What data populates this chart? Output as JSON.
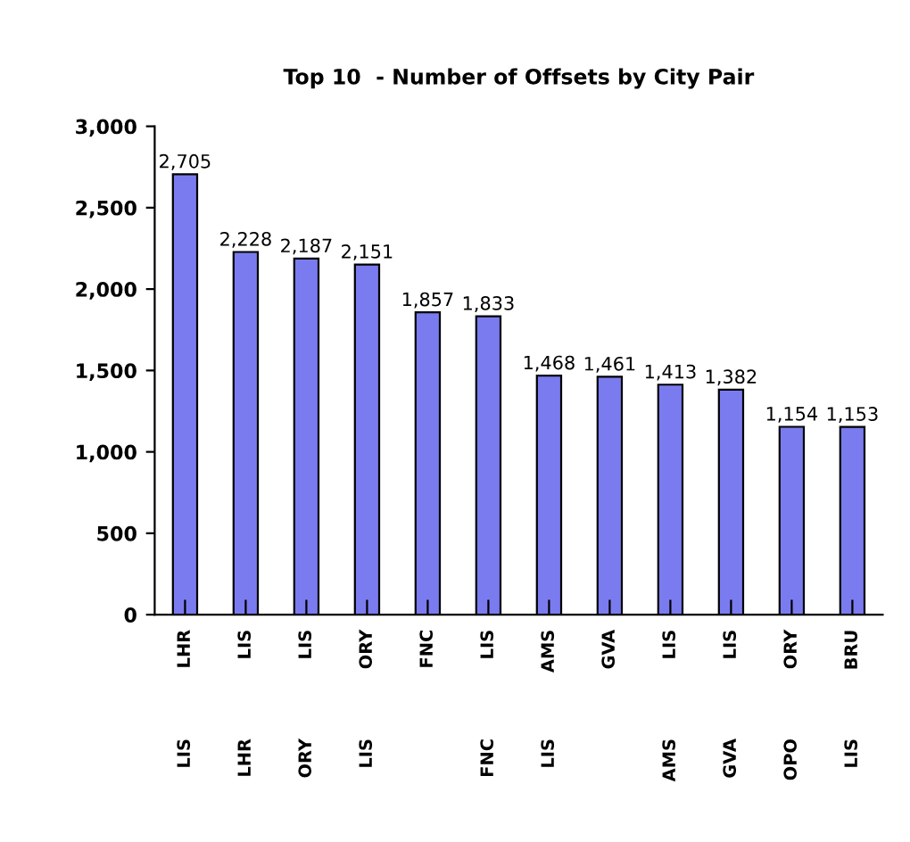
{
  "chart_data": {
    "type": "bar",
    "title": "Top 10  - Number of Offsets by City Pair",
    "categories": [
      "LHR LIS",
      "LIS LHR",
      "LIS ORY",
      "ORY LIS",
      "FNC",
      "LIS FNC",
      "AMS LIS",
      "GVA",
      "LIS AMS",
      "LIS GVA",
      "ORY OPO",
      "BRU LIS"
    ],
    "values": [
      2705,
      2228,
      2187,
      2151,
      1857,
      1833,
      1468,
      1461,
      1413,
      1382,
      1154,
      1153
    ],
    "value_labels": [
      "2,705",
      "2,228",
      "2,187",
      "2,151",
      "1,857",
      "1,833",
      "1,468",
      "1,461",
      "1,413",
      "1,382",
      "1,154",
      "1,153"
    ],
    "color": "#7b7bf0",
    "ylim": [
      0,
      3000
    ],
    "yticks": [
      0,
      {
        "value": 500,
        "label": "500"
      },
      {
        "value": 1000,
        "label": "1,000"
      },
      {
        "value": 1500,
        "label": "1,500"
      },
      {
        "value": 2000,
        "label": "2,000"
      },
      {
        "value": 2500,
        "label": "2,500"
      },
      {
        "value": 3000,
        "label": "3,000"
      }
    ],
    "grid": false
  }
}
